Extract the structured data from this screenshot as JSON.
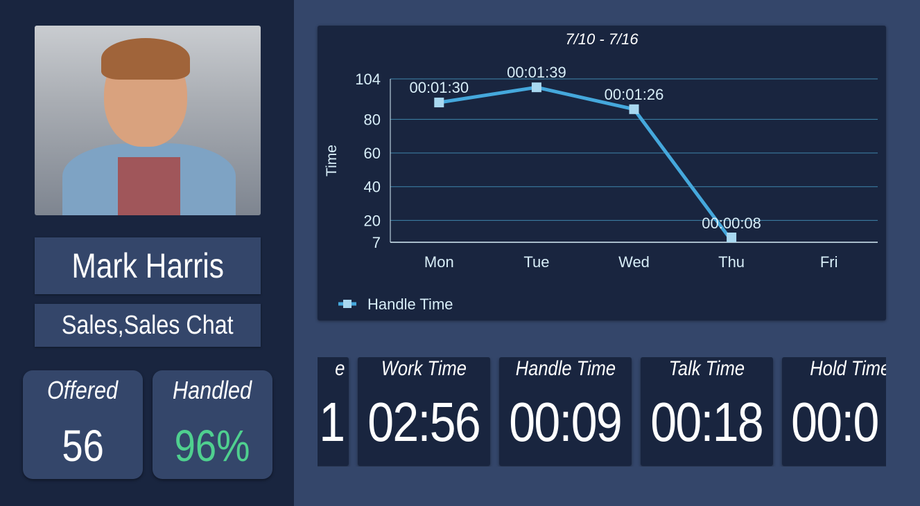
{
  "agent": {
    "name": "Mark Harris",
    "groups": "Sales,Sales Chat"
  },
  "stats": [
    {
      "label": "Offered",
      "value": "56"
    },
    {
      "label": "Handled",
      "value": "96%",
      "color": "#4fd08f"
    }
  ],
  "cards": [
    {
      "label": "e",
      "value": "1"
    },
    {
      "label": "Work Time",
      "value": "02:56"
    },
    {
      "label": "Handle Time",
      "value": "00:09"
    },
    {
      "label": "Talk Time",
      "value": "00:18"
    },
    {
      "label": "Hold Time",
      "value": "00:0"
    }
  ],
  "chart_data": {
    "type": "line",
    "title": "7/10 - 7/16",
    "ylabel": "Time",
    "categories": [
      "Mon",
      "Tue",
      "Wed",
      "Thu",
      "Fri"
    ],
    "y_ticks": [
      7,
      20,
      40,
      60,
      80,
      104
    ],
    "ylim": [
      7,
      104
    ],
    "grid": true,
    "legend": "bottom-left",
    "series": [
      {
        "name": "Handle Time",
        "color": "#45a8dc",
        "marker_color": "#a8d8f0",
        "values": [
          90,
          99,
          86,
          8,
          null
        ],
        "labels": [
          "00:01:30",
          "00:01:39",
          "00:01:26",
          "00:00:08",
          null
        ]
      }
    ]
  }
}
